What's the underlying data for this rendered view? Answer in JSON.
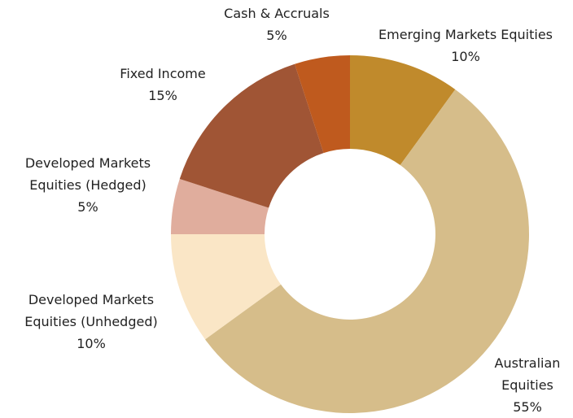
{
  "chart_data": {
    "type": "donut",
    "categories": [
      "Emerging Markets Equities",
      "Australian Equities",
      "Developed Markets Equities (Unhedged)",
      "Developed Markets Equities (Hedged)",
      "Fixed Income",
      "Cash & Accruals"
    ],
    "values": [
      10,
      55,
      10,
      5,
      15,
      5
    ],
    "value_labels": [
      "10%",
      "55%",
      "10%",
      "5%",
      "15%",
      "5%"
    ],
    "colors": [
      "#c08a2c",
      "#d6bd8a",
      "#fae6c6",
      "#e0ad9d",
      "#a05535",
      "#bf5a1e"
    ]
  }
}
